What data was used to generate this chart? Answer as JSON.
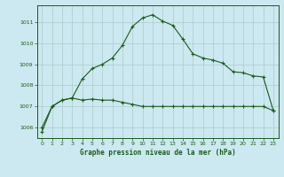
{
  "title": "Graphe pression niveau de la mer (hPa)",
  "background_color": "#cce8f0",
  "grid_color": "#aacccc",
  "line_color": "#1a5c1a",
  "xlim": [
    -0.5,
    23.5
  ],
  "ylim": [
    1005.5,
    1011.8
  ],
  "yticks": [
    1006,
    1007,
    1008,
    1009,
    1010,
    1011
  ],
  "xticks": [
    0,
    1,
    2,
    3,
    4,
    5,
    6,
    7,
    8,
    9,
    10,
    11,
    12,
    13,
    14,
    15,
    16,
    17,
    18,
    19,
    20,
    21,
    22,
    23
  ],
  "series1_x": [
    0,
    1,
    2,
    3,
    4,
    5,
    6,
    7,
    8,
    9,
    10,
    11,
    12,
    13,
    14,
    15,
    16,
    17,
    18,
    19,
    20,
    21,
    22,
    23
  ],
  "series1_y": [
    1006.0,
    1007.0,
    1007.3,
    1007.4,
    1007.3,
    1007.35,
    1007.3,
    1007.3,
    1007.2,
    1007.1,
    1007.0,
    1007.0,
    1007.0,
    1007.0,
    1007.0,
    1007.0,
    1007.0,
    1007.0,
    1007.0,
    1007.0,
    1007.0,
    1007.0,
    1007.0,
    1006.8
  ],
  "series2_x": [
    0,
    1,
    2,
    3,
    4,
    5,
    6,
    7,
    8,
    9,
    10,
    11,
    12,
    13,
    14,
    15,
    16,
    17,
    18,
    19,
    20,
    21,
    22,
    23
  ],
  "series2_y": [
    1005.8,
    1007.0,
    1007.3,
    1007.4,
    1008.3,
    1008.8,
    1009.0,
    1009.3,
    1009.9,
    1010.8,
    1011.2,
    1011.35,
    1011.05,
    1010.85,
    1010.2,
    1009.5,
    1009.3,
    1009.2,
    1009.05,
    1008.65,
    1008.6,
    1008.45,
    1008.4,
    1006.8
  ]
}
